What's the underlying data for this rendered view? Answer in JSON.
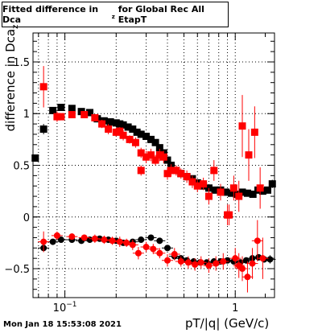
{
  "chart_data": {
    "type": "scatter",
    "title": "Fitted difference in Dca",
    "title_sub": "z",
    "title_rest": "for Global Rec All EtapT",
    "xlabel": "pT/|q| (GeV/c)",
    "ylabel": "difference in Dca",
    "ylabel_sub": "z",
    "xscale": "log",
    "xlim": [
      0.065,
      1.7
    ],
    "ylim": [
      -0.78,
      1.78
    ],
    "xticks": [
      {
        "v": 0.1,
        "label": "10",
        "sup": "−1"
      },
      {
        "v": 1,
        "label": "1",
        "sup": ""
      }
    ],
    "yticks": [
      {
        "v": -0.5,
        "label": "−0.5"
      },
      {
        "v": 0,
        "label": "0"
      },
      {
        "v": 0.5,
        "label": "0.5"
      },
      {
        "v": 1,
        "label": "1"
      },
      {
        "v": 1.5,
        "label": "1.5"
      }
    ],
    "grid": true,
    "series": [
      {
        "color": "#000000",
        "points": [
          [
            0.067,
            0.57,
            0.02
          ],
          [
            0.075,
            0.85,
            0.05
          ],
          [
            0.085,
            1.03,
            0.03
          ],
          [
            0.095,
            1.06,
            0.02
          ],
          [
            0.11,
            1.05,
            0.02
          ],
          [
            0.125,
            1.02,
            0.02
          ],
          [
            0.14,
            1.01,
            0.02
          ],
          [
            0.155,
            0.95,
            0.02
          ],
          [
            0.17,
            0.93,
            0.02
          ],
          [
            0.185,
            0.92,
            0.02
          ],
          [
            0.2,
            0.91,
            0.02
          ],
          [
            0.21,
            0.9,
            0.02
          ],
          [
            0.22,
            0.89,
            0.02
          ],
          [
            0.235,
            0.87,
            0.02
          ],
          [
            0.25,
            0.85,
            0.02
          ],
          [
            0.265,
            0.82,
            0.02
          ],
          [
            0.28,
            0.8,
            0.02
          ],
          [
            0.3,
            0.78,
            0.02
          ],
          [
            0.32,
            0.75,
            0.02
          ],
          [
            0.34,
            0.72,
            0.02
          ],
          [
            0.36,
            0.67,
            0.02
          ],
          [
            0.38,
            0.62,
            0.02
          ],
          [
            0.4,
            0.55,
            0.02
          ],
          [
            0.42,
            0.5,
            0.02
          ],
          [
            0.45,
            0.45,
            0.02
          ],
          [
            0.48,
            0.42,
            0.02
          ],
          [
            0.52,
            0.39,
            0.02
          ],
          [
            0.56,
            0.37,
            0.02
          ],
          [
            0.6,
            0.33,
            0.02
          ],
          [
            0.65,
            0.3,
            0.02
          ],
          [
            0.7,
            0.28,
            0.02
          ],
          [
            0.76,
            0.26,
            0.02
          ],
          [
            0.82,
            0.26,
            0.02
          ],
          [
            0.88,
            0.24,
            0.02
          ],
          [
            0.95,
            0.23,
            0.02
          ],
          [
            1.02,
            0.22,
            0.02
          ],
          [
            1.1,
            0.24,
            0.03
          ],
          [
            1.18,
            0.23,
            0.03
          ],
          [
            1.27,
            0.22,
            0.03
          ],
          [
            1.36,
            0.26,
            0.03
          ],
          [
            1.45,
            0.25,
            0.03
          ],
          [
            1.55,
            0.26,
            0.03
          ],
          [
            1.65,
            0.32,
            0.04
          ],
          [
            0.075,
            -0.3,
            0.03
          ],
          [
            0.085,
            -0.24,
            0.02
          ],
          [
            0.095,
            -0.22,
            0.02
          ],
          [
            0.11,
            -0.22,
            0.02
          ],
          [
            0.125,
            -0.23,
            0.02
          ],
          [
            0.14,
            -0.22,
            0.02
          ],
          [
            0.16,
            -0.21,
            0.02
          ],
          [
            0.18,
            -0.22,
            0.02
          ],
          [
            0.2,
            -0.23,
            0.02
          ],
          [
            0.22,
            -0.25,
            0.02
          ],
          [
            0.25,
            -0.24,
            0.02
          ],
          [
            0.28,
            -0.22,
            0.02
          ],
          [
            0.32,
            -0.2,
            0.02
          ],
          [
            0.36,
            -0.23,
            0.02
          ],
          [
            0.4,
            -0.3,
            0.02
          ],
          [
            0.44,
            -0.38,
            0.02
          ],
          [
            0.48,
            -0.4,
            0.02
          ],
          [
            0.52,
            -0.42,
            0.02
          ],
          [
            0.57,
            -0.43,
            0.02
          ],
          [
            0.62,
            -0.44,
            0.02
          ],
          [
            0.68,
            -0.44,
            0.02
          ],
          [
            0.75,
            -0.43,
            0.02
          ],
          [
            0.82,
            -0.43,
            0.02
          ],
          [
            0.9,
            -0.42,
            0.02
          ],
          [
            0.98,
            -0.43,
            0.02
          ],
          [
            1.07,
            -0.44,
            0.03
          ],
          [
            1.16,
            -0.42,
            0.03
          ],
          [
            1.26,
            -0.4,
            0.03
          ],
          [
            1.37,
            -0.39,
            0.03
          ],
          [
            1.48,
            -0.41,
            0.03
          ],
          [
            1.6,
            -0.41,
            0.04
          ]
        ]
      },
      {
        "color": "#ff0000",
        "points": [
          [
            0.075,
            1.26,
            0.2
          ],
          [
            0.09,
            0.97,
            0.05
          ],
          [
            0.095,
            0.97,
            0.03
          ],
          [
            0.11,
            0.99,
            0.03
          ],
          [
            0.13,
            0.99,
            0.03
          ],
          [
            0.15,
            0.96,
            0.03
          ],
          [
            0.165,
            0.9,
            0.04
          ],
          [
            0.18,
            0.85,
            0.05
          ],
          [
            0.2,
            0.82,
            0.04
          ],
          [
            0.21,
            0.83,
            0.04
          ],
          [
            0.22,
            0.79,
            0.05
          ],
          [
            0.24,
            0.75,
            0.04
          ],
          [
            0.26,
            0.72,
            0.05
          ],
          [
            0.28,
            0.62,
            0.05
          ],
          [
            0.3,
            0.58,
            0.06
          ],
          [
            0.32,
            0.6,
            0.06
          ],
          [
            0.34,
            0.55,
            0.05
          ],
          [
            0.36,
            0.6,
            0.06
          ],
          [
            0.38,
            0.58,
            0.06
          ],
          [
            0.4,
            0.42,
            0.06
          ],
          [
            0.42,
            0.45,
            0.06
          ],
          [
            0.45,
            0.45,
            0.05
          ],
          [
            0.48,
            0.42,
            0.05
          ],
          [
            0.52,
            0.39,
            0.06
          ],
          [
            0.56,
            0.34,
            0.06
          ],
          [
            0.6,
            0.3,
            0.06
          ],
          [
            0.65,
            0.32,
            0.06
          ],
          [
            0.7,
            0.2,
            0.08
          ],
          [
            0.75,
            0.45,
            0.1
          ],
          [
            0.82,
            0.24,
            0.08
          ],
          [
            0.9,
            0.02,
            0.1
          ],
          [
            0.98,
            0.28,
            0.12
          ],
          [
            1.05,
            0.2,
            0.15
          ],
          [
            1.1,
            0.88,
            0.3
          ],
          [
            1.2,
            0.6,
            0.25
          ],
          [
            1.3,
            0.82,
            0.25
          ],
          [
            1.4,
            0.28,
            0.2
          ],
          [
            0.28,
            0.45,
            0.05
          ],
          [
            0.075,
            -0.24,
            0.1
          ],
          [
            0.09,
            -0.18,
            0.04
          ],
          [
            0.11,
            -0.19,
            0.03
          ],
          [
            0.13,
            -0.2,
            0.03
          ],
          [
            0.15,
            -0.21,
            0.04
          ],
          [
            0.17,
            -0.22,
            0.04
          ],
          [
            0.19,
            -0.23,
            0.04
          ],
          [
            0.21,
            -0.24,
            0.05
          ],
          [
            0.23,
            -0.25,
            0.04
          ],
          [
            0.25,
            -0.27,
            0.05
          ],
          [
            0.27,
            -0.35,
            0.06
          ],
          [
            0.3,
            -0.29,
            0.05
          ],
          [
            0.33,
            -0.31,
            0.05
          ],
          [
            0.36,
            -0.35,
            0.05
          ],
          [
            0.4,
            -0.42,
            0.06
          ],
          [
            0.44,
            -0.36,
            0.06
          ],
          [
            0.48,
            -0.43,
            0.05
          ],
          [
            0.53,
            -0.44,
            0.06
          ],
          [
            0.58,
            -0.46,
            0.06
          ],
          [
            0.63,
            -0.44,
            0.06
          ],
          [
            0.7,
            -0.47,
            0.07
          ],
          [
            0.77,
            -0.45,
            0.07
          ],
          [
            0.85,
            -0.43,
            0.08
          ],
          [
            0.92,
            0.02,
            0.1
          ],
          [
            1.0,
            -0.4,
            0.1
          ],
          [
            1.05,
            -0.47,
            0.12
          ],
          [
            1.1,
            -0.5,
            0.12
          ],
          [
            1.18,
            -0.58,
            0.15
          ],
          [
            1.26,
            -0.45,
            0.15
          ],
          [
            1.35,
            -0.23,
            0.2
          ],
          [
            1.45,
            -0.4,
            0.2
          ]
        ]
      }
    ]
  },
  "footer": {
    "timestamp": "Mon Jan 18 15:53:08 2021"
  }
}
